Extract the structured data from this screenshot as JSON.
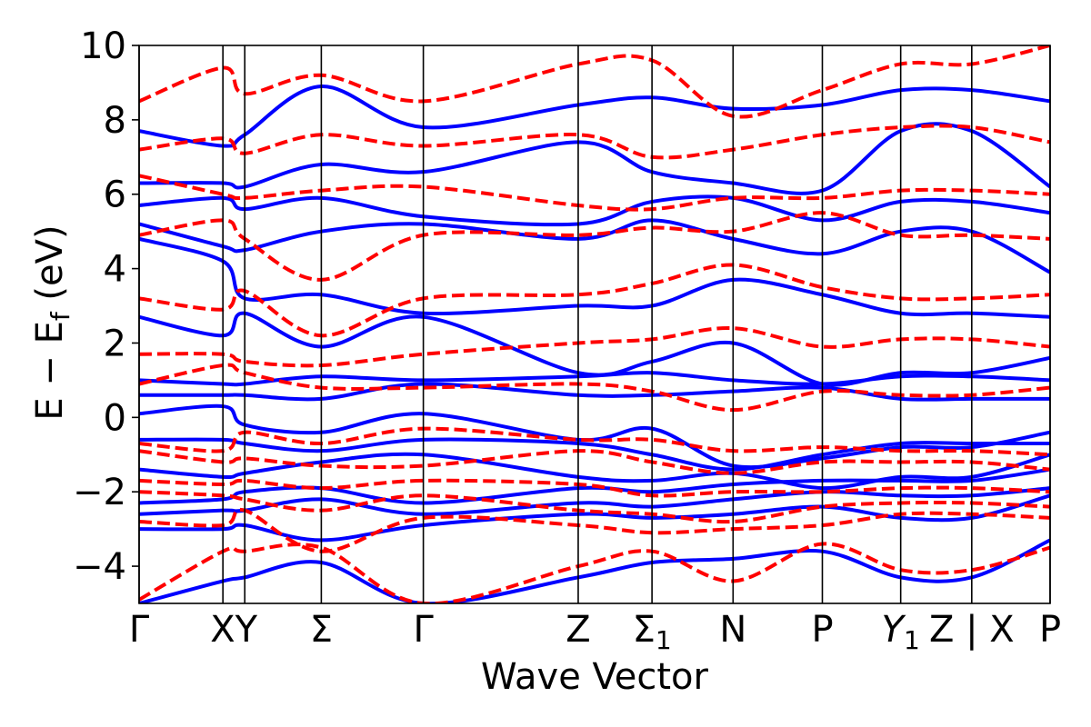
{
  "chart_data": {
    "type": "line",
    "title": "",
    "xlabel": "Wave Vector",
    "ylabel": "E − E_f (eV)",
    "ylabel_parts": {
      "lead": "E − E",
      "sub": "f",
      "tail": " (eV)"
    },
    "ylim": [
      -5,
      10
    ],
    "yticks": [
      -4,
      -2,
      0,
      2,
      4,
      6,
      8,
      10
    ],
    "ytick_labels": [
      "−4",
      "−2",
      "0",
      "2",
      "4",
      "6",
      "8",
      "10"
    ],
    "xlim": [
      0,
      1
    ],
    "grid": false,
    "legend": "none",
    "high_symmetry_points": [
      {
        "label": "Γ",
        "sub": "",
        "x": 0.0
      },
      {
        "label": "XY",
        "sub": "",
        "x": 0.104
      },
      {
        "label": "Σ",
        "sub": "",
        "x": 0.2
      },
      {
        "label": "Γ",
        "sub": "",
        "x": 0.312
      },
      {
        "label": "Z",
        "sub": "",
        "x": 0.482
      },
      {
        "label": "Σ",
        "sub": "1",
        "x": 0.563
      },
      {
        "label": "N",
        "sub": "",
        "x": 0.652
      },
      {
        "label": "P",
        "sub": "",
        "x": 0.75
      },
      {
        "label": "Y",
        "sub": "1",
        "x": 0.836
      },
      {
        "label": "Z | X",
        "sub": "",
        "x": 0.914
      },
      {
        "label": "P",
        "sub": "",
        "x": 1.0
      }
    ],
    "vertical_line_x": [
      0.0,
      0.092,
      0.116,
      0.2,
      0.312,
      0.482,
      0.563,
      0.652,
      0.75,
      0.836,
      0.914,
      1.0
    ],
    "series": [
      {
        "style": "solid",
        "color": "#0000ff",
        "bands": [
          {
            "x": [
              0,
              0.092,
              0.116,
              0.2,
              0.312,
              0.482,
              0.563,
              0.652,
              0.75,
              0.836,
              0.914,
              1.0
            ],
            "y": [
              -5.0,
              -4.4,
              -4.3,
              -3.9,
              -5.0,
              -4.3,
              -3.9,
              -3.8,
              -3.6,
              -4.3,
              -4.3,
              -3.3
            ]
          },
          {
            "x": [
              0,
              0.092,
              0.116,
              0.2,
              0.312,
              0.482,
              0.563,
              0.652,
              0.75,
              0.836,
              0.914,
              1.0
            ],
            "y": [
              -3.0,
              -3.0,
              -2.9,
              -3.3,
              -2.9,
              -2.6,
              -2.7,
              -2.6,
              -2.4,
              -2.7,
              -2.7,
              -2.1
            ]
          },
          {
            "x": [
              0,
              0.092,
              0.116,
              0.2,
              0.312,
              0.482,
              0.563,
              0.652,
              0.75,
              0.836,
              0.914,
              1.0
            ],
            "y": [
              -2.6,
              -2.5,
              -2.5,
              -2.2,
              -2.6,
              -2.3,
              -2.4,
              -2.2,
              -2.0,
              -2.1,
              -2.1,
              -1.9
            ]
          },
          {
            "x": [
              0,
              0.092,
              0.116,
              0.2,
              0.312,
              0.482,
              0.563,
              0.652,
              0.75,
              0.836,
              0.914,
              1.0
            ],
            "y": [
              -2.3,
              -2.2,
              -2.0,
              -1.9,
              -2.3,
              -1.9,
              -2.0,
              -1.8,
              -1.7,
              -1.7,
              -1.7,
              -1.4
            ]
          },
          {
            "x": [
              0,
              0.092,
              0.116,
              0.2,
              0.312,
              0.482,
              0.563,
              0.652,
              0.75,
              0.836,
              0.914,
              1.0
            ],
            "y": [
              -1.4,
              -1.6,
              -1.5,
              -1.2,
              -1.0,
              -1.6,
              -1.7,
              -1.5,
              -1.9,
              -1.6,
              -1.6,
              -1.0
            ]
          },
          {
            "x": [
              0,
              0.092,
              0.116,
              0.2,
              0.312,
              0.482,
              0.563,
              0.652,
              0.75,
              0.836,
              0.914,
              1.0
            ],
            "y": [
              -0.6,
              -0.6,
              -0.7,
              -0.9,
              -0.6,
              -0.7,
              -1.0,
              -1.4,
              -1.0,
              -0.7,
              -0.7,
              -0.7
            ]
          },
          {
            "x": [
              0,
              0.092,
              0.116,
              0.2,
              0.312,
              0.482,
              0.563,
              0.652,
              0.75,
              0.836,
              0.914,
              1.0
            ],
            "y": [
              0.1,
              0.3,
              -0.2,
              -0.4,
              0.1,
              -0.6,
              -0.3,
              -1.3,
              -1.1,
              -0.8,
              -0.8,
              -0.4
            ]
          },
          {
            "x": [
              0,
              0.092,
              0.116,
              0.2,
              0.312,
              0.482,
              0.563,
              0.652,
              0.75,
              0.836,
              0.914,
              1.0
            ],
            "y": [
              0.6,
              0.6,
              0.6,
              0.5,
              0.9,
              0.6,
              0.6,
              0.7,
              0.8,
              0.5,
              0.5,
              0.5
            ]
          },
          {
            "x": [
              0,
              0.092,
              0.116,
              0.2,
              0.312,
              0.482,
              0.563,
              0.652,
              0.75,
              0.836,
              0.914,
              1.0
            ],
            "y": [
              1.0,
              0.9,
              0.9,
              1.1,
              1.0,
              1.1,
              1.2,
              1.0,
              0.9,
              1.1,
              1.1,
              1.0
            ]
          },
          {
            "x": [
              0,
              0.092,
              0.116,
              0.2,
              0.312,
              0.482,
              0.563,
              0.652,
              0.75,
              0.836,
              0.914,
              1.0
            ],
            "y": [
              2.7,
              2.2,
              2.8,
              1.9,
              2.7,
              1.2,
              1.5,
              2.0,
              0.9,
              1.2,
              1.2,
              1.6
            ]
          },
          {
            "x": [
              0,
              0.092,
              0.116,
              0.2,
              0.312,
              0.482,
              0.563,
              0.652,
              0.75,
              0.836,
              0.914,
              1.0
            ],
            "y": [
              4.8,
              4.2,
              3.2,
              3.3,
              2.8,
              3.0,
              3.0,
              3.7,
              3.3,
              2.8,
              2.8,
              2.7
            ]
          },
          {
            "x": [
              0,
              0.092,
              0.116,
              0.2,
              0.312,
              0.482,
              0.563,
              0.652,
              0.75,
              0.836,
              0.914,
              1.0
            ],
            "y": [
              5.2,
              4.6,
              4.5,
              5.0,
              5.2,
              4.8,
              5.3,
              4.8,
              4.4,
              5.0,
              5.0,
              3.9
            ]
          },
          {
            "x": [
              0,
              0.092,
              0.116,
              0.2,
              0.312,
              0.482,
              0.563,
              0.652,
              0.75,
              0.836,
              0.914,
              1.0
            ],
            "y": [
              5.7,
              5.9,
              5.6,
              5.9,
              5.4,
              5.2,
              5.8,
              5.9,
              5.3,
              5.8,
              5.8,
              5.5
            ]
          },
          {
            "x": [
              0,
              0.092,
              0.116,
              0.2,
              0.312,
              0.482,
              0.563,
              0.652,
              0.75,
              0.836,
              0.914,
              1.0
            ],
            "y": [
              6.3,
              6.3,
              6.2,
              6.8,
              6.6,
              7.4,
              6.6,
              6.3,
              6.1,
              7.7,
              7.7,
              6.2
            ]
          },
          {
            "x": [
              0,
              0.092,
              0.116,
              0.2,
              0.312,
              0.482,
              0.563,
              0.652,
              0.75,
              0.836,
              0.914,
              1.0
            ],
            "y": [
              7.7,
              7.3,
              7.6,
              8.9,
              7.8,
              8.4,
              8.6,
              8.3,
              8.4,
              8.8,
              8.8,
              8.5
            ]
          }
        ]
      },
      {
        "style": "dashed",
        "color": "#ff0000",
        "bands": [
          {
            "x": [
              0,
              0.092,
              0.116,
              0.2,
              0.312,
              0.482,
              0.563,
              0.652,
              0.75,
              0.836,
              0.914,
              1.0
            ],
            "y": [
              -4.9,
              -3.6,
              -3.6,
              -3.5,
              -5.0,
              -4.0,
              -3.6,
              -4.4,
              -3.4,
              -4.1,
              -4.1,
              -3.5
            ]
          },
          {
            "x": [
              0,
              0.092,
              0.116,
              0.2,
              0.312,
              0.482,
              0.563,
              0.652,
              0.75,
              0.836,
              0.914,
              1.0
            ],
            "y": [
              -2.8,
              -2.9,
              -2.5,
              -3.6,
              -2.7,
              -2.9,
              -3.1,
              -3.0,
              -2.9,
              -2.6,
              -2.6,
              -2.7
            ]
          },
          {
            "x": [
              0,
              0.092,
              0.116,
              0.2,
              0.312,
              0.482,
              0.563,
              0.652,
              0.75,
              0.836,
              0.914,
              1.0
            ],
            "y": [
              -2.0,
              -2.1,
              -2.2,
              -2.5,
              -2.1,
              -2.5,
              -2.6,
              -2.8,
              -2.4,
              -2.3,
              -2.3,
              -2.4
            ]
          },
          {
            "x": [
              0,
              0.092,
              0.116,
              0.2,
              0.312,
              0.482,
              0.563,
              0.652,
              0.75,
              0.836,
              0.914,
              1.0
            ],
            "y": [
              -1.7,
              -1.8,
              -1.7,
              -1.9,
              -1.7,
              -1.8,
              -2.1,
              -2.0,
              -2.0,
              -1.9,
              -1.9,
              -2.0
            ]
          },
          {
            "x": [
              0,
              0.092,
              0.116,
              0.2,
              0.312,
              0.482,
              0.563,
              0.652,
              0.75,
              0.836,
              0.914,
              1.0
            ],
            "y": [
              -0.9,
              -1.2,
              -1.1,
              -1.3,
              -1.3,
              -0.9,
              -1.2,
              -1.5,
              -1.2,
              -1.2,
              -1.2,
              -1.4
            ]
          },
          {
            "x": [
              0,
              0.092,
              0.116,
              0.2,
              0.312,
              0.482,
              0.563,
              0.652,
              0.75,
              0.836,
              0.914,
              1.0
            ],
            "y": [
              -0.7,
              -0.9,
              -0.4,
              -0.7,
              -0.3,
              -0.6,
              -0.6,
              -0.9,
              -0.8,
              -0.9,
              -0.9,
              -1.0
            ]
          },
          {
            "x": [
              0,
              0.092,
              0.116,
              0.2,
              0.312,
              0.482,
              0.563,
              0.652,
              0.75,
              0.836,
              0.914,
              1.0
            ],
            "y": [
              0.9,
              1.4,
              1.2,
              0.8,
              0.8,
              0.9,
              0.7,
              0.2,
              0.7,
              0.6,
              0.6,
              0.8
            ]
          },
          {
            "x": [
              0,
              0.092,
              0.116,
              0.2,
              0.312,
              0.482,
              0.563,
              0.652,
              0.75,
              0.836,
              0.914,
              1.0
            ],
            "y": [
              1.7,
              1.7,
              1.5,
              1.4,
              1.7,
              2.0,
              2.1,
              2.4,
              1.9,
              2.1,
              2.1,
              1.9
            ]
          },
          {
            "x": [
              0,
              0.092,
              0.116,
              0.2,
              0.312,
              0.482,
              0.563,
              0.652,
              0.75,
              0.836,
              0.914,
              1.0
            ],
            "y": [
              3.2,
              2.9,
              3.4,
              2.2,
              3.2,
              3.3,
              3.6,
              4.1,
              3.5,
              3.2,
              3.2,
              3.3
            ]
          },
          {
            "x": [
              0,
              0.092,
              0.116,
              0.2,
              0.312,
              0.482,
              0.563,
              0.652,
              0.75,
              0.836,
              0.914,
              1.0
            ],
            "y": [
              4.9,
              5.3,
              4.8,
              3.7,
              4.9,
              4.9,
              5.1,
              5.0,
              5.5,
              4.9,
              4.9,
              4.8
            ]
          },
          {
            "x": [
              0,
              0.092,
              0.116,
              0.2,
              0.312,
              0.482,
              0.563,
              0.652,
              0.75,
              0.836,
              0.914,
              1.0
            ],
            "y": [
              6.5,
              6.0,
              5.9,
              6.1,
              6.2,
              5.7,
              5.6,
              5.9,
              5.9,
              6.1,
              6.1,
              6.0
            ]
          },
          {
            "x": [
              0,
              0.092,
              0.116,
              0.2,
              0.312,
              0.482,
              0.563,
              0.652,
              0.75,
              0.836,
              0.914,
              1.0
            ],
            "y": [
              7.2,
              7.5,
              7.1,
              7.6,
              7.3,
              7.6,
              7.0,
              7.2,
              7.6,
              7.8,
              7.8,
              7.4
            ]
          },
          {
            "x": [
              0,
              0.092,
              0.116,
              0.2,
              0.312,
              0.482,
              0.563,
              0.652,
              0.75,
              0.836,
              0.914,
              1.0
            ],
            "y": [
              8.5,
              9.4,
              8.7,
              9.2,
              8.5,
              9.5,
              9.6,
              8.1,
              8.8,
              9.5,
              9.5,
              10.0
            ]
          }
        ]
      }
    ]
  }
}
